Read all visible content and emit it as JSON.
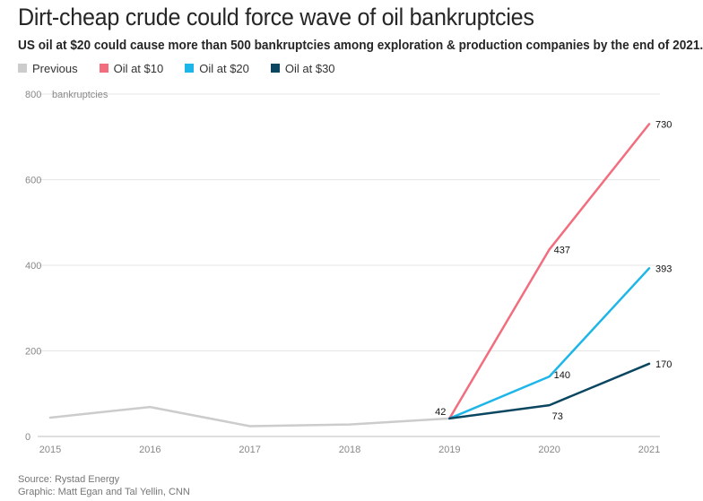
{
  "title": "Dirt-cheap crude could force wave of oil bankruptcies",
  "subtitle": "US oil at $20 could cause more than 500 bankruptcies among exploration & production companies by the end of 2021.",
  "legend": [
    {
      "label": "Previous",
      "color": "#cccccc"
    },
    {
      "label": "Oil at $10",
      "color": "#f26d7d"
    },
    {
      "label": "Oil at $20",
      "color": "#1eb6e8"
    },
    {
      "label": "Oil at $30",
      "color": "#0b4661"
    }
  ],
  "source": {
    "line1": "Source: Rystad Energy",
    "line2": "Graphic: Matt Egan and Tal Yellin, CNN"
  },
  "chart_data": {
    "type": "line",
    "ylabel": "bankruptcies",
    "ylim": [
      0,
      800
    ],
    "yticks": [
      0,
      200,
      400,
      600,
      800
    ],
    "xlim": [
      2015,
      2021
    ],
    "xticks": [
      "2015",
      "2016",
      "2017",
      "2018",
      "2019",
      "2020",
      "2021"
    ],
    "grid": true,
    "legend_position": "top-left",
    "series": [
      {
        "name": "Previous",
        "color": "#cccccc",
        "x": [
          2015,
          2016,
          2017,
          2018,
          2019
        ],
        "y": [
          44,
          69,
          24,
          28,
          42
        ]
      },
      {
        "name": "Oil at $10",
        "color": "#f26d7d",
        "x": [
          2019,
          2020,
          2021
        ],
        "y": [
          42,
          437,
          730
        ]
      },
      {
        "name": "Oil at $20",
        "color": "#1eb6e8",
        "x": [
          2019,
          2020,
          2021
        ],
        "y": [
          42,
          140,
          393
        ]
      },
      {
        "name": "Oil at $30",
        "color": "#0b4661",
        "x": [
          2019,
          2020,
          2021
        ],
        "y": [
          42,
          73,
          170
        ]
      }
    ],
    "annotations": [
      {
        "series": "Previous",
        "x": 2019,
        "y": 42,
        "text": "42"
      },
      {
        "series": "Oil at $10",
        "x": 2020,
        "y": 437,
        "text": "437"
      },
      {
        "series": "Oil at $10",
        "x": 2021,
        "y": 730,
        "text": "730"
      },
      {
        "series": "Oil at $20",
        "x": 2020,
        "y": 140,
        "text": "140"
      },
      {
        "series": "Oil at $20",
        "x": 2021,
        "y": 393,
        "text": "393"
      },
      {
        "series": "Oil at $30",
        "x": 2020,
        "y": 73,
        "text": "73"
      },
      {
        "series": "Oil at $30",
        "x": 2021,
        "y": 170,
        "text": "170"
      }
    ]
  }
}
